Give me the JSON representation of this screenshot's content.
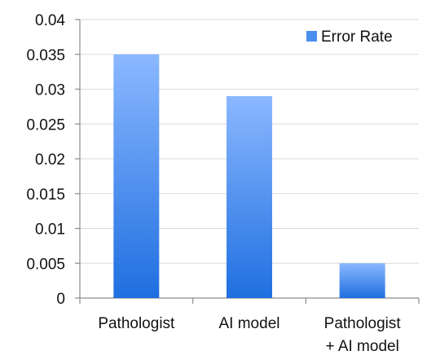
{
  "chart_data": {
    "type": "bar",
    "title": "",
    "xlabel": "",
    "ylabel": "",
    "categories": [
      "Pathologist",
      "AI model",
      "Pathologist + AI model"
    ],
    "category_label_lines": [
      [
        "Pathologist"
      ],
      [
        "AI model"
      ],
      [
        "Pathologist",
        "+   AI model"
      ]
    ],
    "series": [
      {
        "name": "Error Rate",
        "values": [
          0.035,
          0.029,
          0.005
        ]
      }
    ],
    "ylim": [
      0,
      0.04
    ],
    "yticks": [
      0,
      0.005,
      0.01,
      0.015,
      0.02,
      0.025,
      0.03,
      0.035,
      0.04
    ],
    "ytick_labels": [
      "0",
      "0.005",
      "0.01",
      "0.015",
      "0.02",
      "0.025",
      "0.03",
      "0.035",
      "0.04"
    ],
    "grid": true,
    "legend_position": "top-right",
    "colors": {
      "bar_top": "#8bb8ff",
      "bar_bottom": "#1f6fe0",
      "legend_swatch": "#4a8ef0",
      "grid": "#d9d9d9",
      "axis": "#8c8c8c"
    }
  }
}
